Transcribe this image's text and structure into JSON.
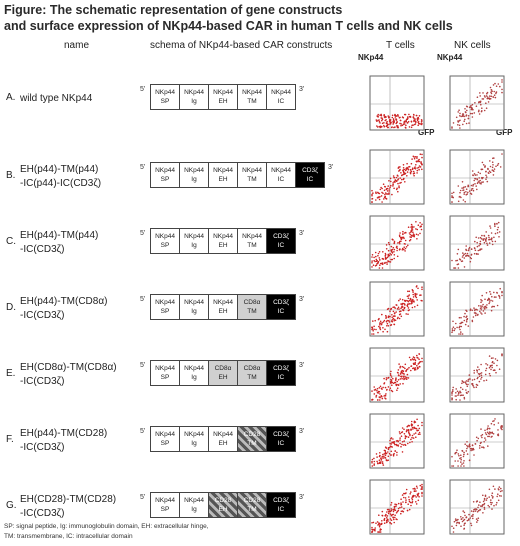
{
  "title_lines": [
    "Figure: The schematic representation of gene constructs",
    "and surface expression of NKp44-based CAR in human T cells and NK cells"
  ],
  "headers": {
    "name": "name",
    "schema": "schema of NKp44-based CAR constructs",
    "t_cells": "T cells",
    "nk_cells": "NK cells",
    "nkp44_left": "NKp44",
    "nkp44_right": "NKp44",
    "gfp_left": "GFP",
    "gfp_right": "GFP"
  },
  "end_labels": {
    "five": "5'",
    "three": "3'"
  },
  "rows": [
    {
      "letter": "A.",
      "name": [
        "wild type NKp44"
      ],
      "segments": [
        {
          "l1": "NKp44",
          "l2": "SP",
          "style": "white"
        },
        {
          "l1": "NKp44",
          "l2": "Ig",
          "style": "white"
        },
        {
          "l1": "NKp44",
          "l2": "EH",
          "style": "white"
        },
        {
          "l1": "NKp44",
          "l2": "TM",
          "style": "white"
        },
        {
          "l1": "NKp44",
          "l2": "IC",
          "style": "white"
        }
      ]
    },
    {
      "letter": "B.",
      "name": [
        "EH(p44)-TM(p44)",
        "-IC(p44)-IC(CD3ζ)"
      ],
      "segments": [
        {
          "l1": "NKp44",
          "l2": "SP",
          "style": "white"
        },
        {
          "l1": "NKp44",
          "l2": "Ig",
          "style": "white"
        },
        {
          "l1": "NKp44",
          "l2": "EH",
          "style": "white"
        },
        {
          "l1": "NKp44",
          "l2": "TM",
          "style": "white"
        },
        {
          "l1": "NKp44",
          "l2": "IC",
          "style": "white"
        },
        {
          "l1": "CD3ζ",
          "l2": "IC",
          "style": "black"
        }
      ]
    },
    {
      "letter": "C.",
      "name": [
        "EH(p44)-TM(p44)",
        "-IC(CD3ζ)"
      ],
      "segments": [
        {
          "l1": "NKp44",
          "l2": "SP",
          "style": "white"
        },
        {
          "l1": "NKp44",
          "l2": "Ig",
          "style": "white"
        },
        {
          "l1": "NKp44",
          "l2": "EH",
          "style": "white"
        },
        {
          "l1": "NKp44",
          "l2": "TM",
          "style": "white"
        },
        {
          "l1": "CD3ζ",
          "l2": "IC",
          "style": "black"
        }
      ]
    },
    {
      "letter": "D.",
      "name": [
        "EH(p44)-TM(CD8α)",
        "-IC(CD3ζ)"
      ],
      "segments": [
        {
          "l1": "NKp44",
          "l2": "SP",
          "style": "white"
        },
        {
          "l1": "NKp44",
          "l2": "Ig",
          "style": "white"
        },
        {
          "l1": "NKp44",
          "l2": "EH",
          "style": "white"
        },
        {
          "l1": "CD8α",
          "l2": "TM",
          "style": "gray"
        },
        {
          "l1": "CD3ζ",
          "l2": "IC",
          "style": "black"
        }
      ]
    },
    {
      "letter": "E.",
      "name": [
        "EH(CD8α)-TM(CD8α)",
        "-IC(CD3ζ)"
      ],
      "segments": [
        {
          "l1": "NKp44",
          "l2": "SP",
          "style": "white"
        },
        {
          "l1": "NKp44",
          "l2": "Ig",
          "style": "white"
        },
        {
          "l1": "CD8α",
          "l2": "EH",
          "style": "gray"
        },
        {
          "l1": "CD8α",
          "l2": "TM",
          "style": "gray"
        },
        {
          "l1": "CD3ζ",
          "l2": "IC",
          "style": "black"
        }
      ]
    },
    {
      "letter": "F.",
      "name": [
        "EH(p44)-TM(CD28)",
        "-IC(CD3ζ)"
      ],
      "segments": [
        {
          "l1": "NKp44",
          "l2": "SP",
          "style": "white"
        },
        {
          "l1": "NKp44",
          "l2": "Ig",
          "style": "white"
        },
        {
          "l1": "NKp44",
          "l2": "EH",
          "style": "white"
        },
        {
          "l1": "CD28",
          "l2": "TM",
          "style": "hatch"
        },
        {
          "l1": "CD3ζ",
          "l2": "IC",
          "style": "black"
        }
      ]
    },
    {
      "letter": "G.",
      "name": [
        "EH(CD28)-TM(CD28)",
        "-IC(CD3ζ)"
      ],
      "segments": [
        {
          "l1": "NKp44",
          "l2": "SP",
          "style": "white"
        },
        {
          "l1": "NKp44",
          "l2": "Ig",
          "style": "white"
        },
        {
          "l1": "CD28",
          "l2": "EH",
          "style": "hatch"
        },
        {
          "l1": "CD28",
          "l2": "TM",
          "style": "hatch"
        },
        {
          "l1": "CD3ζ",
          "l2": "IC",
          "style": "black"
        }
      ]
    }
  ],
  "footnote_lines": [
    "SP: signal peptide, Ig: immunoglobulin domain, EH: extracellular hinge,",
    "TM: transmembrane, IC: intracellular domain"
  ],
  "colors": {
    "dots": "#cc2222",
    "black_segment": "#000000",
    "gray_segment": "#d0d0d0"
  }
}
